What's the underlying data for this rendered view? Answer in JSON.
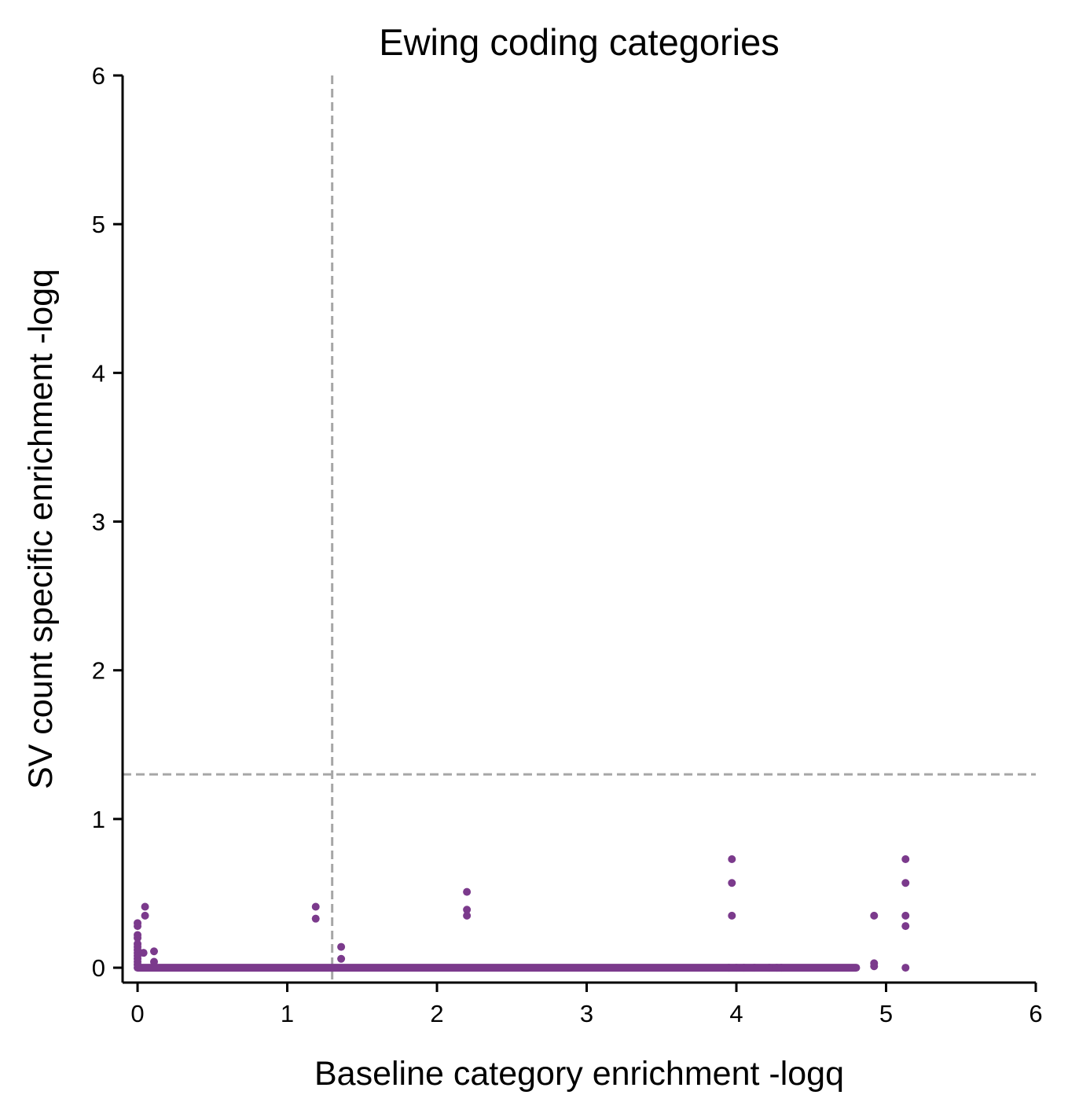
{
  "chart_data": {
    "type": "scatter",
    "title": "Ewing coding categories",
    "xlabel": "Baseline category enrichment -logq",
    "ylabel": "SV count specific enrichment -logq",
    "xlim": [
      -0.1,
      6
    ],
    "ylim": [
      -0.1,
      6
    ],
    "xticks": [
      "0",
      "1",
      "2",
      "3",
      "4",
      "5",
      "6"
    ],
    "yticks": [
      "0",
      "1",
      "2",
      "3",
      "4",
      "5",
      "6"
    ],
    "grid": false,
    "point_color": "#7b3a8c",
    "reference_line_color": "#a6a6a6",
    "reference_lines": {
      "x": 1.3,
      "y": 1.3
    },
    "baseline_band": {
      "y": 0,
      "x_from": 0,
      "x_to": 4.8
    },
    "points": [
      [
        0,
        0.3
      ],
      [
        0,
        0.28
      ],
      [
        0,
        0.22
      ],
      [
        0,
        0.2
      ],
      [
        0,
        0.16
      ],
      [
        0,
        0.14
      ],
      [
        0,
        0.12
      ],
      [
        0,
        0.1
      ],
      [
        0,
        0.08
      ],
      [
        0,
        0.06
      ],
      [
        0,
        0.04
      ],
      [
        0,
        0.02
      ],
      [
        0.05,
        0.41
      ],
      [
        0.05,
        0.35
      ],
      [
        0.04,
        0.1
      ],
      [
        0.11,
        0.11
      ],
      [
        0.11,
        0.04
      ],
      [
        1.19,
        0.41
      ],
      [
        1.19,
        0.33
      ],
      [
        1.36,
        0.14
      ],
      [
        1.36,
        0.06
      ],
      [
        2.2,
        0.51
      ],
      [
        2.2,
        0.39
      ],
      [
        2.2,
        0.35
      ],
      [
        3.97,
        0.73
      ],
      [
        3.97,
        0.57
      ],
      [
        3.97,
        0.35
      ],
      [
        3.95,
        0
      ],
      [
        4.0,
        0
      ],
      [
        4.05,
        0
      ],
      [
        4.12,
        0
      ],
      [
        4.22,
        0
      ],
      [
        4.27,
        0
      ],
      [
        4.3,
        0
      ],
      [
        4.92,
        0.35
      ],
      [
        4.92,
        0.03
      ],
      [
        4.92,
        0.01
      ],
      [
        5.13,
        0.73
      ],
      [
        5.13,
        0.57
      ],
      [
        5.13,
        0.35
      ],
      [
        5.13,
        0.28
      ],
      [
        5.13,
        0.0
      ]
    ]
  }
}
